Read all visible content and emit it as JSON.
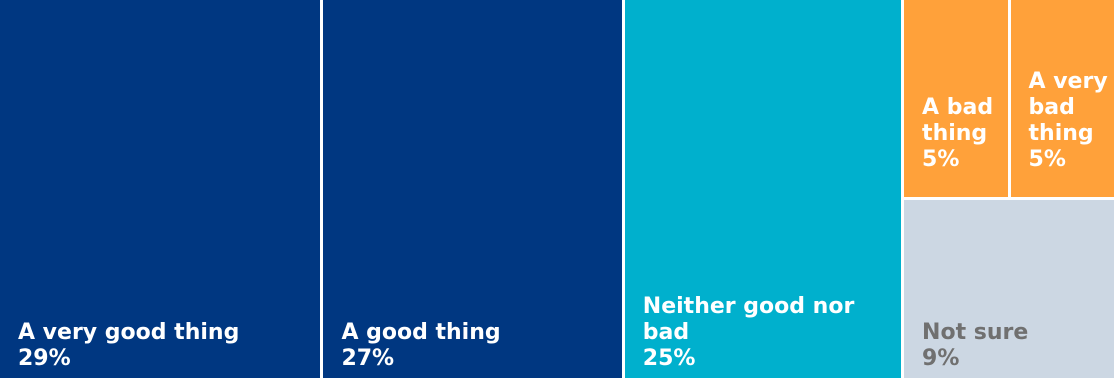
{
  "chart_data": {
    "type": "treemap",
    "items": [
      {
        "label": "A very good thing",
        "value_label": "29%",
        "value": 29,
        "color": "#003781",
        "text_color": "#ffffff"
      },
      {
        "label": "A good thing",
        "value_label": "27%",
        "value": 27,
        "color": "#003781",
        "text_color": "#ffffff"
      },
      {
        "label": "Neither good nor bad",
        "value_label": "25%",
        "value": 25,
        "color": "#00b0cd",
        "text_color": "#ffffff"
      },
      {
        "label": "A bad thing",
        "value_label": "5%",
        "value": 5,
        "color": "#ffa13a",
        "text_color": "#ffffff"
      },
      {
        "label": "A very bad thing",
        "value_label": "5%",
        "value": 5,
        "color": "#ffa13a",
        "text_color": "#ffffff"
      },
      {
        "label": "Not sure",
        "value_label": "9%",
        "value": 9,
        "color": "#ccd7e3",
        "text_color": "#707070"
      }
    ]
  }
}
